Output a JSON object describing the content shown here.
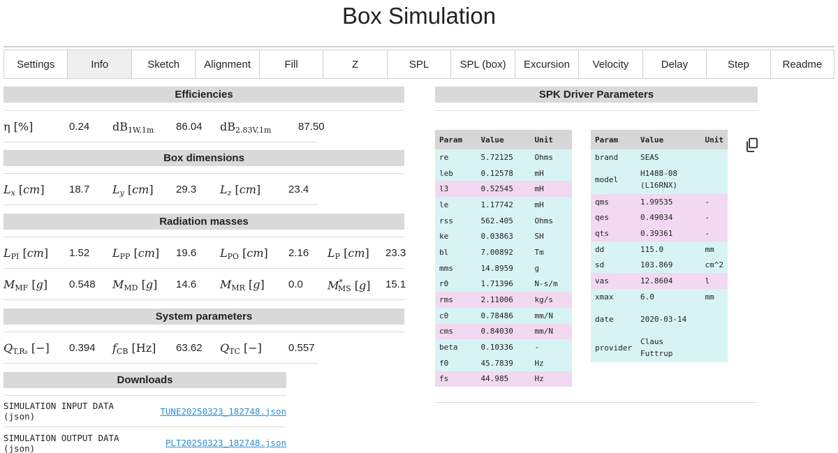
{
  "page": {
    "title": "Box Simulation"
  },
  "tabs": [
    {
      "label": "Settings"
    },
    {
      "label": "Info"
    },
    {
      "label": "Sketch"
    },
    {
      "label": "Alignment"
    },
    {
      "label": "Fill"
    },
    {
      "label": "Z"
    },
    {
      "label": "SPL"
    },
    {
      "label": "SPL (box)"
    },
    {
      "label": "Excursion"
    },
    {
      "label": "Velocity"
    },
    {
      "label": "Delay"
    },
    {
      "label": "Step"
    },
    {
      "label": "Readme"
    }
  ],
  "active_tab": "Info",
  "efficiencies": {
    "heading": "Efficiencies",
    "eta_label": "η [%]",
    "eta": "0.24",
    "db1w": "86.04",
    "db283v": "87.50"
  },
  "box_dimensions": {
    "heading": "Box dimensions",
    "lx": "18.7",
    "ly": "29.3",
    "lz": "23.4"
  },
  "radiation_masses": {
    "heading": "Radiation masses",
    "lpi": "1.52",
    "lpp": "19.6",
    "lpo": "2.16",
    "lp": "23.3",
    "mmf": "0.548",
    "mmd": "14.6",
    "mmr": "0.0",
    "mms": "15.1"
  },
  "system_parameters": {
    "heading": "System parameters",
    "qtrs": "0.394",
    "fcb": "63.62",
    "qtc": "0.557"
  },
  "downloads": {
    "heading": "Downloads",
    "input_label": "SIMULATION INPUT DATA (json)",
    "input_link": "TUNE20250323_182748.json",
    "output_label": "SIMULATION OUTPUT DATA (json)",
    "output_link": "PLT20250323_182748.json"
  },
  "spk": {
    "heading": "SPK Driver Parameters",
    "columns": [
      "Param",
      "Value",
      "Unit"
    ],
    "left": [
      {
        "param": "re",
        "value": "5.72125",
        "unit": "Ohms",
        "color": "cyan"
      },
      {
        "param": "leb",
        "value": "0.12578",
        "unit": "mH",
        "color": "cyan"
      },
      {
        "param": "l3",
        "value": "0.52545",
        "unit": "mH",
        "color": "pink"
      },
      {
        "param": "le",
        "value": "1.17742",
        "unit": "mH",
        "color": "cyan"
      },
      {
        "param": "rss",
        "value": "562.405",
        "unit": "Ohms",
        "color": "cyan"
      },
      {
        "param": "ke",
        "value": "0.03863",
        "unit": "SH",
        "color": "cyan"
      },
      {
        "param": "bl",
        "value": "7.00892",
        "unit": "Tm",
        "color": "cyan"
      },
      {
        "param": "mms",
        "value": "14.8959",
        "unit": "g",
        "color": "cyan"
      },
      {
        "param": "r0",
        "value": "1.71396",
        "unit": "N-s/m",
        "color": "cyan"
      },
      {
        "param": "rms",
        "value": "2.11006",
        "unit": "kg/s",
        "color": "pink"
      },
      {
        "param": "c0",
        "value": "0.78486",
        "unit": "mm/N",
        "color": "cyan"
      },
      {
        "param": "cms",
        "value": "0.84030",
        "unit": "mm/N",
        "color": "pink"
      },
      {
        "param": "beta",
        "value": "0.10336",
        "unit": "-",
        "color": "cyan"
      },
      {
        "param": "f0",
        "value": "45.7839",
        "unit": "Hz",
        "color": "cyan"
      },
      {
        "param": "fs",
        "value": "44.985",
        "unit": "Hz",
        "color": "pink"
      }
    ],
    "right": [
      {
        "param": "brand",
        "value": "SEAS",
        "unit": "",
        "color": "cyan"
      },
      {
        "param": "model",
        "value": "H1488-08 (L16RNX)",
        "unit": "",
        "color": "cyan",
        "tall": true
      },
      {
        "param": "qms",
        "value": "1.99535",
        "unit": "-",
        "color": "pink"
      },
      {
        "param": "qes",
        "value": "0.49034",
        "unit": "-",
        "color": "pink"
      },
      {
        "param": "qts",
        "value": "0.39361",
        "unit": "-",
        "color": "pink"
      },
      {
        "param": "dd",
        "value": "115.0",
        "unit": "mm",
        "color": "cyan"
      },
      {
        "param": "sd",
        "value": "103.869",
        "unit": "cm^2",
        "color": "cyan"
      },
      {
        "param": "vas",
        "value": "12.8604",
        "unit": "l",
        "color": "pink"
      },
      {
        "param": "xmax",
        "value": "6.0",
        "unit": "mm",
        "color": "cyan"
      },
      {
        "param": "date",
        "value": "2020-03-14",
        "unit": "",
        "color": "cyan",
        "tall": true
      },
      {
        "param": "provider",
        "value": "Claus Futtrup",
        "unit": "",
        "color": "cyan",
        "tall": true
      }
    ]
  },
  "colors": {
    "cyan": "#d8f3f3",
    "pink": "#f2d8f0",
    "header": "#d9d9d9",
    "link": "#2a8fd6"
  },
  "icons": {
    "copy": "copy-icon"
  }
}
